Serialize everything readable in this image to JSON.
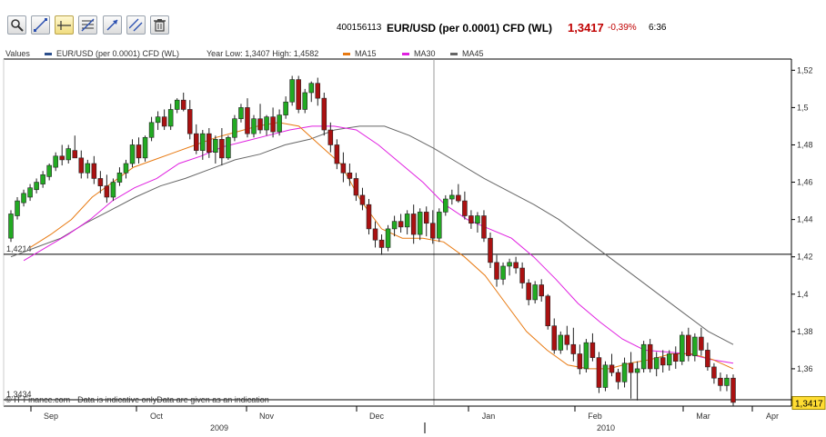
{
  "toolbar": {
    "tools": [
      {
        "name": "zoom-tool-button",
        "icon": "zoom-icon"
      },
      {
        "name": "trendline-tool-button",
        "icon": "trendline-icon"
      },
      {
        "name": "crosshair-tool-button",
        "icon": "crosshair-icon"
      },
      {
        "name": "fibonacci-tool-button",
        "icon": "fibonacci-icon"
      },
      {
        "name": "arrow-tool-button",
        "icon": "arrow-icon"
      },
      {
        "name": "parallel-lines-tool-button",
        "icon": "parallel-lines-icon"
      },
      {
        "name": "delete-button",
        "icon": "trash-icon"
      }
    ]
  },
  "quote": {
    "id": "400156113",
    "name": "EUR/USD (per 0.0001) CFD (WL)",
    "price": "1,3417",
    "change": "-0,39%",
    "time": "6:36",
    "price_color": "#c00000",
    "change_color": "#c00000"
  },
  "legend": {
    "title": "Values",
    "items": [
      {
        "label": "EUR/USD (per 0.0001) CFD (WL)",
        "color": "#2b4f8c"
      },
      {
        "label": "Year Low: 1,3407 High: 1,4582",
        "color": ""
      },
      {
        "label": "MA15",
        "color": "#e87a12"
      },
      {
        "label": "MA30",
        "color": "#e020e0"
      },
      {
        "label": "MA45",
        "color": "#666666"
      }
    ]
  },
  "source": "© IT-Finance.com - Data is indicative onlyData are given as an indication",
  "chart_data": {
    "type": "candlestick",
    "y_ticks": [
      "1,52",
      "1,5",
      "1,48",
      "1,46",
      "1,44",
      "1,42",
      "1,4",
      "1,38",
      "1,36"
    ],
    "ylim": [
      1.34,
      1.526
    ],
    "month_ticks": [
      "Sep",
      "Oct",
      "Nov",
      "Dec",
      "Jan",
      "Feb",
      "Mar",
      "Apr"
    ],
    "year_ticks": [
      "2009",
      "2010"
    ],
    "hlines": [
      {
        "label": "1,4214",
        "value": 1.4214
      },
      {
        "label": "1,3434",
        "value": 1.3434
      }
    ],
    "last_price_label": "1,3417",
    "last_price": 1.3417,
    "up_color": "#22aa22",
    "down_color": "#aa1111",
    "grid": false,
    "candles": [
      [
        1.43,
        1.445,
        1.428,
        1.443
      ],
      [
        1.442,
        1.452,
        1.44,
        1.45
      ],
      [
        1.449,
        1.456,
        1.447,
        1.454
      ],
      [
        1.452,
        1.459,
        1.45,
        1.457
      ],
      [
        1.456,
        1.462,
        1.454,
        1.46
      ],
      [
        1.459,
        1.466,
        1.457,
        1.464
      ],
      [
        1.463,
        1.47,
        1.461,
        1.469
      ],
      [
        1.468,
        1.476,
        1.466,
        1.474
      ],
      [
        1.474,
        1.48,
        1.469,
        1.472
      ],
      [
        1.472,
        1.48,
        1.47,
        1.478
      ],
      [
        1.477,
        1.485,
        1.474,
        1.473
      ],
      [
        1.473,
        1.477,
        1.462,
        1.465
      ],
      [
        1.465,
        1.472,
        1.462,
        1.47
      ],
      [
        1.47,
        1.474,
        1.459,
        1.462
      ],
      [
        1.462,
        1.466,
        1.454,
        1.458
      ],
      [
        1.458,
        1.464,
        1.449,
        1.452
      ],
      [
        1.452,
        1.462,
        1.45,
        1.46
      ],
      [
        1.46,
        1.468,
        1.458,
        1.465
      ],
      [
        1.465,
        1.472,
        1.462,
        1.47
      ],
      [
        1.47,
        1.483,
        1.468,
        1.48
      ],
      [
        1.48,
        1.484,
        1.47,
        1.473
      ],
      [
        1.473,
        1.485,
        1.471,
        1.484
      ],
      [
        1.484,
        1.495,
        1.482,
        1.492
      ],
      [
        1.492,
        1.498,
        1.488,
        1.495
      ],
      [
        1.495,
        1.499,
        1.488,
        1.49
      ],
      [
        1.49,
        1.502,
        1.488,
        1.499
      ],
      [
        1.499,
        1.505,
        1.497,
        1.504
      ],
      [
        1.504,
        1.508,
        1.498,
        1.499
      ],
      [
        1.499,
        1.504,
        1.483,
        1.486
      ],
      [
        1.486,
        1.491,
        1.475,
        1.477
      ],
      [
        1.477,
        1.488,
        1.472,
        1.486
      ],
      [
        1.486,
        1.489,
        1.473,
        1.476
      ],
      [
        1.476,
        1.485,
        1.47,
        1.483
      ],
      [
        1.483,
        1.489,
        1.469,
        1.473
      ],
      [
        1.473,
        1.485,
        1.472,
        1.484
      ],
      [
        1.484,
        1.496,
        1.482,
        1.494
      ],
      [
        1.494,
        1.502,
        1.492,
        1.5
      ],
      [
        1.5,
        1.505,
        1.484,
        1.486
      ],
      [
        1.486,
        1.496,
        1.484,
        1.494
      ],
      [
        1.494,
        1.502,
        1.486,
        1.488
      ],
      [
        1.488,
        1.496,
        1.485,
        1.495
      ],
      [
        1.495,
        1.5,
        1.484,
        1.487
      ],
      [
        1.487,
        1.499,
        1.485,
        1.496
      ],
      [
        1.496,
        1.506,
        1.494,
        1.503
      ],
      [
        1.503,
        1.517,
        1.501,
        1.515
      ],
      [
        1.515,
        1.517,
        1.497,
        1.499
      ],
      [
        1.499,
        1.51,
        1.497,
        1.508
      ],
      [
        1.508,
        1.514,
        1.503,
        1.513
      ],
      [
        1.513,
        1.516,
        1.501,
        1.505
      ],
      [
        1.505,
        1.508,
        1.485,
        1.488
      ],
      [
        1.488,
        1.492,
        1.476,
        1.48
      ],
      [
        1.48,
        1.483,
        1.467,
        1.47
      ],
      [
        1.47,
        1.476,
        1.46,
        1.465
      ],
      [
        1.465,
        1.47,
        1.458,
        1.462
      ],
      [
        1.462,
        1.465,
        1.45,
        1.453
      ],
      [
        1.453,
        1.457,
        1.445,
        1.448
      ],
      [
        1.448,
        1.451,
        1.432,
        1.435
      ],
      [
        1.435,
        1.439,
        1.425,
        1.429
      ],
      [
        1.429,
        1.432,
        1.421,
        1.425
      ],
      [
        1.425,
        1.437,
        1.423,
        1.435
      ],
      [
        1.435,
        1.442,
        1.431,
        1.439
      ],
      [
        1.439,
        1.443,
        1.433,
        1.436
      ],
      [
        1.436,
        1.445,
        1.432,
        1.443
      ],
      [
        1.443,
        1.448,
        1.427,
        1.432
      ],
      [
        1.432,
        1.446,
        1.429,
        1.444
      ],
      [
        1.444,
        1.447,
        1.431,
        1.438
      ],
      [
        1.438,
        1.445,
        1.427,
        1.43
      ],
      [
        1.43,
        1.446,
        1.428,
        1.444
      ],
      [
        1.444,
        1.453,
        1.442,
        1.451
      ],
      [
        1.451,
        1.456,
        1.448,
        1.453
      ],
      [
        1.453,
        1.459,
        1.449,
        1.45
      ],
      [
        1.45,
        1.455,
        1.44,
        1.442
      ],
      [
        1.442,
        1.445,
        1.435,
        1.438
      ],
      [
        1.438,
        1.444,
        1.433,
        1.442
      ],
      [
        1.442,
        1.445,
        1.428,
        1.43
      ],
      [
        1.43,
        1.433,
        1.414,
        1.417
      ],
      [
        1.417,
        1.421,
        1.404,
        1.408
      ],
      [
        1.408,
        1.417,
        1.405,
        1.415
      ],
      [
        1.415,
        1.419,
        1.41,
        1.417
      ],
      [
        1.417,
        1.42,
        1.411,
        1.414
      ],
      [
        1.414,
        1.417,
        1.403,
        1.406
      ],
      [
        1.406,
        1.408,
        1.394,
        1.397
      ],
      [
        1.397,
        1.407,
        1.395,
        1.405
      ],
      [
        1.405,
        1.408,
        1.396,
        1.399
      ],
      [
        1.399,
        1.4,
        1.381,
        1.383
      ],
      [
        1.383,
        1.387,
        1.368,
        1.37
      ],
      [
        1.37,
        1.38,
        1.368,
        1.378
      ],
      [
        1.378,
        1.383,
        1.37,
        1.373
      ],
      [
        1.373,
        1.382,
        1.364,
        1.368
      ],
      [
        1.368,
        1.373,
        1.357,
        1.36
      ],
      [
        1.36,
        1.376,
        1.358,
        1.374
      ],
      [
        1.374,
        1.379,
        1.364,
        1.366
      ],
      [
        1.366,
        1.369,
        1.347,
        1.35
      ],
      [
        1.35,
        1.364,
        1.348,
        1.362
      ],
      [
        1.362,
        1.368,
        1.356,
        1.358
      ],
      [
        1.358,
        1.36,
        1.349,
        1.353
      ],
      [
        1.353,
        1.366,
        1.35,
        1.363
      ],
      [
        1.363,
        1.369,
        1.344,
        1.358
      ],
      [
        1.358,
        1.364,
        1.343,
        1.36
      ],
      [
        1.36,
        1.375,
        1.358,
        1.373
      ],
      [
        1.373,
        1.376,
        1.358,
        1.36
      ],
      [
        1.36,
        1.369,
        1.356,
        1.366
      ],
      [
        1.366,
        1.37,
        1.358,
        1.362
      ],
      [
        1.362,
        1.37,
        1.359,
        1.368
      ],
      [
        1.368,
        1.372,
        1.36,
        1.364
      ],
      [
        1.364,
        1.38,
        1.362,
        1.378
      ],
      [
        1.378,
        1.382,
        1.364,
        1.367
      ],
      [
        1.367,
        1.379,
        1.364,
        1.377
      ],
      [
        1.377,
        1.382,
        1.367,
        1.37
      ],
      [
        1.37,
        1.374,
        1.359,
        1.361
      ],
      [
        1.361,
        1.363,
        1.352,
        1.355
      ],
      [
        1.355,
        1.358,
        1.348,
        1.351
      ],
      [
        1.351,
        1.357,
        1.348,
        1.355
      ],
      [
        1.355,
        1.357,
        1.34,
        1.342
      ]
    ],
    "ma15": [
      1.425,
      1.432,
      1.44,
      1.452,
      1.46,
      1.468,
      1.472,
      1.476,
      1.48,
      1.484,
      1.487,
      1.49,
      1.492,
      1.49,
      1.48,
      1.47,
      1.45,
      1.435,
      1.43,
      1.43,
      1.428,
      1.42,
      1.41,
      1.395,
      1.38,
      1.37,
      1.362,
      1.36,
      1.36,
      1.363,
      1.365,
      1.368,
      1.368,
      1.365,
      1.36
    ],
    "ma30": [
      1.418,
      1.425,
      1.432,
      1.44,
      1.45,
      1.457,
      1.462,
      1.47,
      1.474,
      1.479,
      1.482,
      1.485,
      1.488,
      1.49,
      1.49,
      1.488,
      1.48,
      1.47,
      1.46,
      1.448,
      1.44,
      1.435,
      1.43,
      1.42,
      1.408,
      1.395,
      1.385,
      1.376,
      1.37,
      1.369,
      1.368,
      1.365,
      1.363
    ],
    "ma45": [
      1.42,
      1.425,
      1.43,
      1.438,
      1.445,
      1.452,
      1.458,
      1.462,
      1.467,
      1.472,
      1.475,
      1.48,
      1.483,
      1.488,
      1.49,
      1.49,
      1.485,
      1.478,
      1.47,
      1.462,
      1.455,
      1.448,
      1.44,
      1.43,
      1.42,
      1.41,
      1.4,
      1.39,
      1.38,
      1.373
    ]
  }
}
